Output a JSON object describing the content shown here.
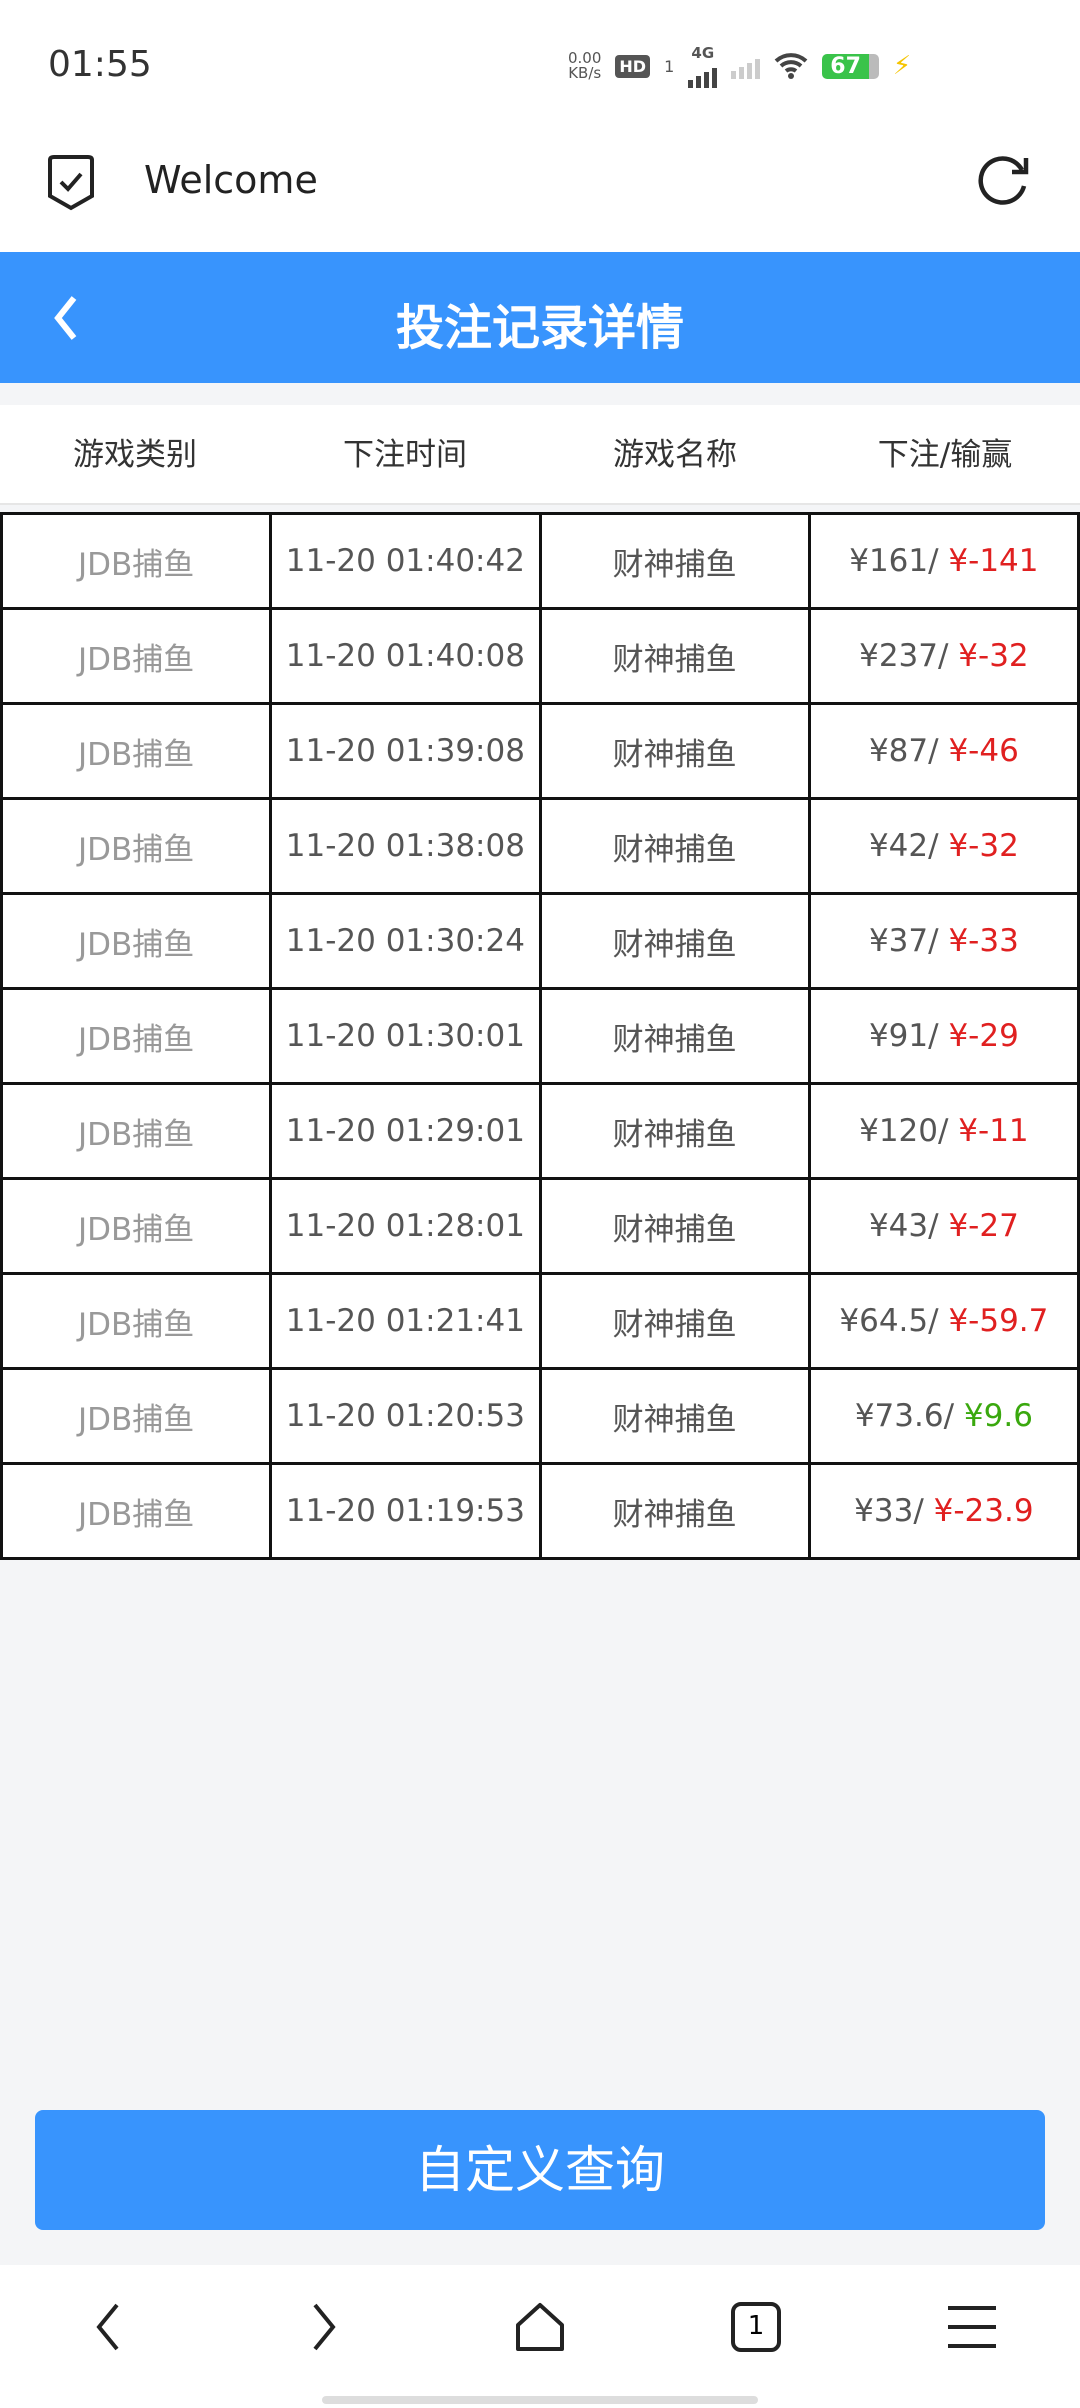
{
  "status_bar": {
    "time": "01:55",
    "net_speed": "0.00",
    "net_unit": "KB/s",
    "hd": "HD",
    "sim": "1",
    "network": "4G",
    "battery": "67"
  },
  "browser": {
    "title": "Welcome"
  },
  "page": {
    "title": "投注记录详情"
  },
  "table": {
    "headers": [
      "游戏类别",
      "下注时间",
      "游戏名称",
      "下注/输赢"
    ],
    "rows": [
      {
        "category": "JDB捕鱼",
        "time": "11-20 01:40:42",
        "game": "财神捕鱼",
        "bet": "¥161/",
        "result": "¥-141",
        "win": false
      },
      {
        "category": "JDB捕鱼",
        "time": "11-20 01:40:08",
        "game": "财神捕鱼",
        "bet": "¥237/",
        "result": "¥-32",
        "win": false
      },
      {
        "category": "JDB捕鱼",
        "time": "11-20 01:39:08",
        "game": "财神捕鱼",
        "bet": "¥87/",
        "result": "¥-46",
        "win": false
      },
      {
        "category": "JDB捕鱼",
        "time": "11-20 01:38:08",
        "game": "财神捕鱼",
        "bet": "¥42/",
        "result": "¥-32",
        "win": false
      },
      {
        "category": "JDB捕鱼",
        "time": "11-20 01:30:24",
        "game": "财神捕鱼",
        "bet": "¥37/",
        "result": "¥-33",
        "win": false
      },
      {
        "category": "JDB捕鱼",
        "time": "11-20 01:30:01",
        "game": "财神捕鱼",
        "bet": "¥91/",
        "result": "¥-29",
        "win": false
      },
      {
        "category": "JDB捕鱼",
        "time": "11-20 01:29:01",
        "game": "财神捕鱼",
        "bet": "¥120/",
        "result": "¥-11",
        "win": false
      },
      {
        "category": "JDB捕鱼",
        "time": "11-20 01:28:01",
        "game": "财神捕鱼",
        "bet": "¥43/",
        "result": "¥-27",
        "win": false
      },
      {
        "category": "JDB捕鱼",
        "time": "11-20 01:21:41",
        "game": "财神捕鱼",
        "bet": "¥64.5/",
        "result": "¥-59.7",
        "win": false
      },
      {
        "category": "JDB捕鱼",
        "time": "11-20 01:20:53",
        "game": "财神捕鱼",
        "bet": "¥73.6/",
        "result": "¥9.6",
        "win": true
      },
      {
        "category": "JDB捕鱼",
        "time": "11-20 01:19:53",
        "game": "财神捕鱼",
        "bet": "¥33/",
        "result": "¥-23.9",
        "win": false
      }
    ]
  },
  "query_button": "自定义查询",
  "bottom_nav": {
    "tabs_count": "1"
  },
  "colors": {
    "accent": "#3894fd",
    "loss": "#e02020",
    "win": "#3aa80e"
  }
}
